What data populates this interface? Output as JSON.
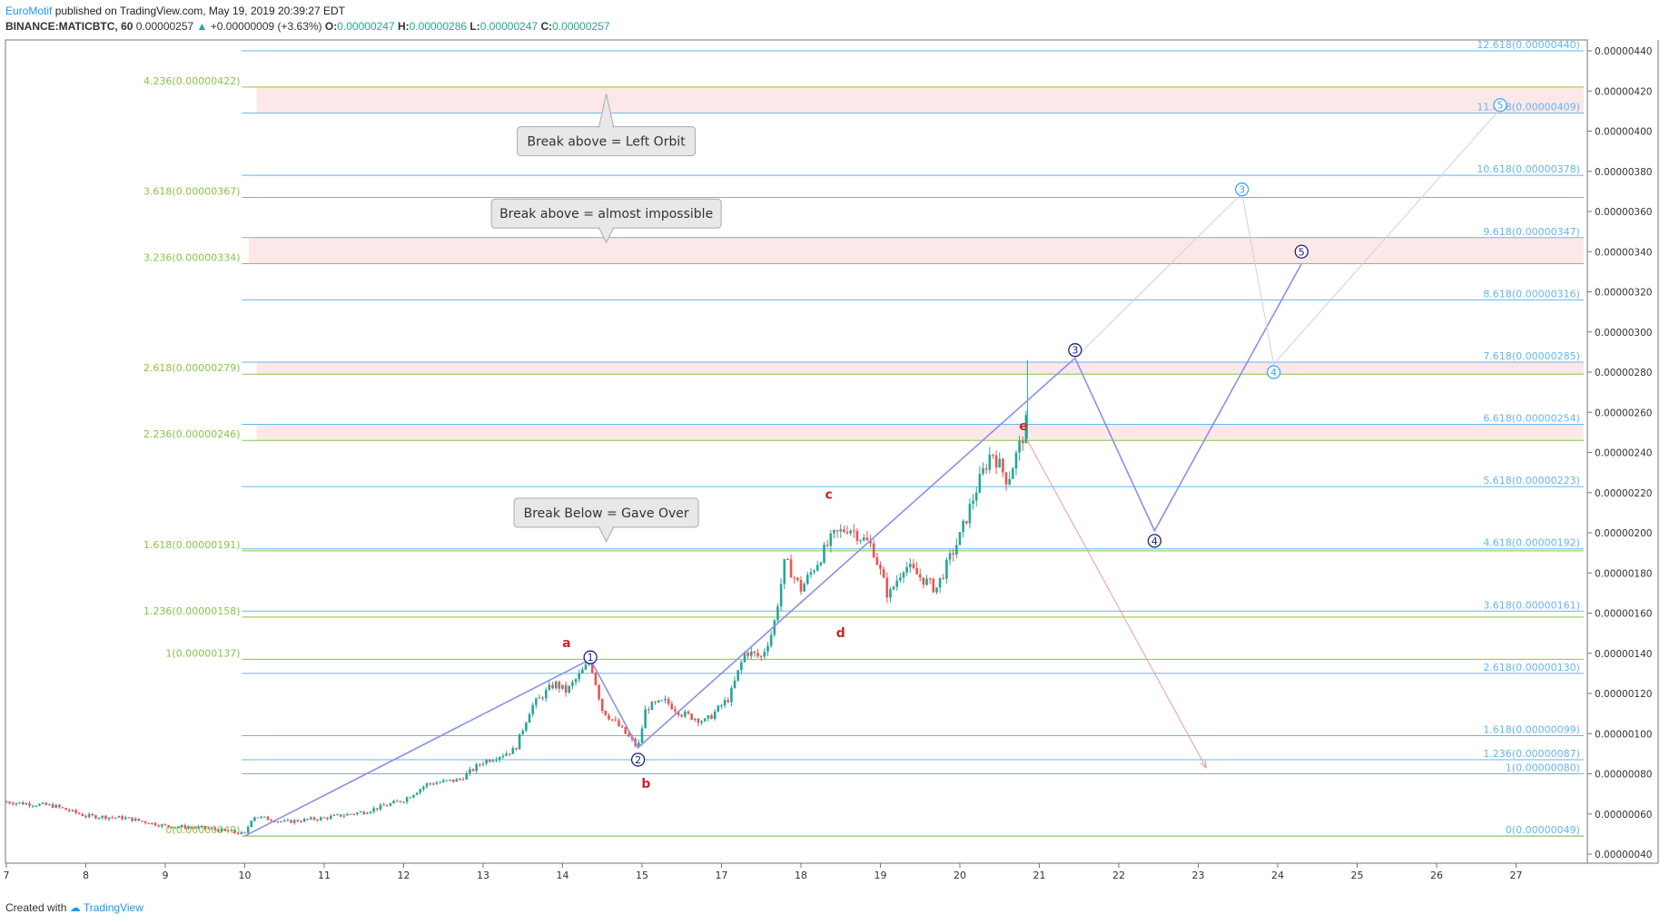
{
  "header": {
    "author": "EuroMotif",
    "published": "published on TradingView.com, May 19, 2019 20:39:27 EDT",
    "symbol": "BINANCE:MATICBTC, 60",
    "last": "0.00000257",
    "change_arrow": "▲",
    "change": "+0.00000009 (+3.63%)",
    "open_label": "O:",
    "open": "0.00000247",
    "high_label": "H:",
    "high": "0.00000286",
    "low_label": "L:",
    "low": "0.00000247",
    "close_label": "C:",
    "close": "0.00000257"
  },
  "footer": {
    "created_with": "Created with",
    "brand": "TradingView"
  },
  "chart_data": {
    "type": "candlestick",
    "title": "",
    "xlabel": "",
    "ylabel": "",
    "y_ticks": [
      "0.00000040",
      "0.00000060",
      "0.00000080",
      "0.00000100",
      "0.00000120",
      "0.00000140",
      "0.00000160",
      "0.00000180",
      "0.00000200",
      "0.00000220",
      "0.00000240",
      "0.00000260",
      "0.00000280",
      "0.00000300",
      "0.00000320",
      "0.00000340",
      "0.00000360",
      "0.00000380",
      "0.00000400",
      "0.00000420",
      "0.00000440"
    ],
    "ylim": [
      3.25e-07,
      4.48e-07
    ],
    "x_ticks": [
      {
        "label": "7",
        "d": 7
      },
      {
        "label": "8",
        "d": 8
      },
      {
        "label": "9",
        "d": 9
      },
      {
        "label": "10",
        "d": 10
      },
      {
        "label": "11",
        "d": 11
      },
      {
        "label": "12",
        "d": 12
      },
      {
        "label": "13",
        "d": 13
      },
      {
        "label": "14",
        "d": 14
      },
      {
        "label": "15",
        "d": 15
      },
      {
        "label": "17",
        "d": 16
      },
      {
        "label": "18",
        "d": 17
      },
      {
        "label": "19",
        "d": 18
      },
      {
        "label": "20",
        "d": 19
      },
      {
        "label": "21",
        "d": 20
      },
      {
        "label": "22",
        "d": 21
      },
      {
        "label": "23",
        "d": 22
      },
      {
        "label": "24",
        "d": 23
      },
      {
        "label": "25",
        "d": 24
      },
      {
        "label": "26",
        "d": 25
      },
      {
        "label": "27",
        "d": 26
      }
    ],
    "price_path": [
      [
        7.0,
        6.6e-07
      ],
      [
        7.6,
        6.4e-07
      ],
      [
        8.0,
        5.9e-07
      ],
      [
        8.5,
        5.8e-07
      ],
      [
        9.0,
        5.4e-07
      ],
      [
        9.5,
        5.3e-07
      ],
      [
        10.0,
        5e-07
      ],
      [
        10.1,
        5.9e-07
      ],
      [
        10.5,
        5.6e-07
      ],
      [
        11.0,
        5.8e-07
      ],
      [
        11.5,
        6.1e-07
      ],
      [
        12.0,
        6.7e-07
      ],
      [
        12.3,
        7.5e-07
      ],
      [
        12.7,
        7.7e-07
      ],
      [
        13.0,
        8.6e-07
      ],
      [
        13.4,
        9.2e-07
      ],
      [
        13.6,
        1.13e-06
      ],
      [
        13.9,
        1.25e-06
      ],
      [
        14.05,
        1.21e-06
      ],
      [
        14.35,
        1.36e-06
      ],
      [
        14.5,
        1.12e-06
      ],
      [
        14.7,
        1.04e-06
      ],
      [
        14.95,
        9.3e-07
      ],
      [
        15.05,
        1.13e-06
      ],
      [
        15.3,
        1.16e-06
      ],
      [
        15.5,
        1.1e-06
      ],
      [
        15.8,
        1.06e-06
      ],
      [
        16.1,
        1.18e-06
      ],
      [
        16.3,
        1.41e-06
      ],
      [
        16.5,
        1.38e-06
      ],
      [
        16.65,
        1.52e-06
      ],
      [
        16.8,
        1.86e-06
      ],
      [
        17.0,
        1.72e-06
      ],
      [
        17.4,
        1.98e-06
      ],
      [
        17.6,
        2.03e-06
      ],
      [
        17.9,
        1.93e-06
      ],
      [
        18.1,
        1.68e-06
      ],
      [
        18.3,
        1.84e-06
      ],
      [
        18.7,
        1.72e-06
      ],
      [
        19.0,
        1.98e-06
      ],
      [
        19.2,
        2.21e-06
      ],
      [
        19.4,
        2.41e-06
      ],
      [
        19.6,
        2.26e-06
      ],
      [
        19.8,
        2.49e-06
      ],
      [
        19.85,
        2.57e-06
      ]
    ],
    "tr_fib_levels": [
      {
        "ratio": "0",
        "value": "0.00000049"
      },
      {
        "ratio": "1",
        "value": "0.00000080"
      },
      {
        "ratio": "1.236",
        "value": "0.00000087"
      },
      {
        "ratio": "1.618",
        "value": "0.00000099"
      },
      {
        "ratio": "2.618",
        "value": "0.00000130"
      },
      {
        "ratio": "3.618",
        "value": "0.00000161"
      },
      {
        "ratio": "4.618",
        "value": "0.00000192"
      },
      {
        "ratio": "5.618",
        "value": "0.00000223"
      },
      {
        "ratio": "6.618",
        "value": "0.00000254"
      },
      {
        "ratio": "7.618",
        "value": "0.00000285"
      },
      {
        "ratio": "8.618",
        "value": "0.00000316"
      },
      {
        "ratio": "9.618",
        "value": "0.00000347"
      },
      {
        "ratio": "10.618",
        "value": "0.00000378"
      },
      {
        "ratio": "11.618",
        "value": "0.00000409"
      },
      {
        "ratio": "12.618",
        "value": "0.00000440"
      }
    ],
    "tl_fib_levels": [
      {
        "ratio": "0",
        "value": "0.00000049"
      },
      {
        "ratio": "1",
        "value": "0.00000137"
      },
      {
        "ratio": "1.236",
        "value": "0.00000158"
      },
      {
        "ratio": "1.618",
        "value": "0.00000191"
      },
      {
        "ratio": "2.236",
        "value": "0.00000246"
      },
      {
        "ratio": "2.618",
        "value": "0.00000279"
      },
      {
        "ratio": "3.236",
        "value": "0.00000334"
      },
      {
        "ratio": "3.618",
        "value": "0.00000367"
      },
      {
        "ratio": "4.236",
        "value": "0.00000422"
      }
    ],
    "zones": [
      {
        "d1": 10.15,
        "d2": 26.85,
        "y1": 2.46e-06,
        "y2": 2.54e-06
      },
      {
        "d1": 10.15,
        "d2": 26.85,
        "y1": 2.79e-06,
        "y2": 2.85e-06
      },
      {
        "d1": 10.05,
        "d2": 26.85,
        "y1": 3.34e-06,
        "y2": 3.47e-06
      },
      {
        "d1": 10.15,
        "d2": 26.85,
        "y1": 4.09e-06,
        "y2": 4.22e-06
      }
    ],
    "wave_path": [
      [
        10.0,
        4.9e-07
      ],
      [
        14.35,
        1.37e-06
      ],
      [
        14.95,
        9.3e-07
      ],
      [
        20.45,
        2.87e-06
      ],
      [
        21.45,
        2.01e-06
      ],
      [
        23.3,
        3.34e-06
      ]
    ],
    "alt_wave_path": [
      [
        20.45,
        2.87e-06
      ],
      [
        22.55,
        3.69e-06
      ],
      [
        22.95,
        2.84e-06
      ],
      [
        25.8,
        4.11e-06
      ]
    ],
    "bear_arrow": [
      [
        19.85,
        2.46e-06
      ],
      [
        22.1,
        8.3e-07
      ]
    ],
    "wave_labels": [
      {
        "text": "1",
        "d": 14.35,
        "v": 1.38e-06,
        "style": "primary"
      },
      {
        "text": "2",
        "d": 14.95,
        "v": 8.7e-07,
        "style": "primary"
      },
      {
        "text": "3",
        "d": 20.45,
        "v": 2.91e-06,
        "style": "primary"
      },
      {
        "text": "4",
        "d": 21.45,
        "v": 1.96e-06,
        "style": "primary"
      },
      {
        "text": "5",
        "d": 23.3,
        "v": 3.4e-06,
        "style": "primary"
      },
      {
        "text": "3",
        "d": 22.55,
        "v": 3.71e-06,
        "style": "alt"
      },
      {
        "text": "4",
        "d": 22.95,
        "v": 2.8e-06,
        "style": "alt"
      },
      {
        "text": "5",
        "d": 25.8,
        "v": 4.13e-06,
        "style": "alt"
      }
    ],
    "letter_labels": [
      {
        "text": "a",
        "d": 14.05,
        "v": 1.43e-06
      },
      {
        "text": "b",
        "d": 15.05,
        "v": 7.3e-07
      },
      {
        "text": "c",
        "d": 17.35,
        "v": 2.17e-06
      },
      {
        "text": "d",
        "d": 17.5,
        "v": 1.48e-06
      },
      {
        "text": "e",
        "d": 19.8,
        "v": 2.51e-06
      }
    ],
    "annotations": [
      {
        "text": "Break above = Left Orbit",
        "d": 14.55,
        "v": 3.95e-06,
        "pointer": "up"
      },
      {
        "text": "Break above = almost impossible",
        "d": 14.55,
        "v": 3.59e-06,
        "pointer": "down"
      },
      {
        "text": "Break Below = Gave Over",
        "d": 14.55,
        "v": 2.1e-06,
        "pointer": "down"
      }
    ],
    "grid": false,
    "colors": {
      "candle_up": "#26a69a",
      "candle_down": "#ef5350",
      "tl_fib": "#8bc34a",
      "tr_fib": "#64b5f6",
      "wave": "#8c8fef",
      "wave_label": "#1a237e",
      "alt_label": "#42a5f5",
      "letter": "#c62828",
      "bear_arrow": "#ef9a9a",
      "zone": "#fce8e8"
    }
  }
}
